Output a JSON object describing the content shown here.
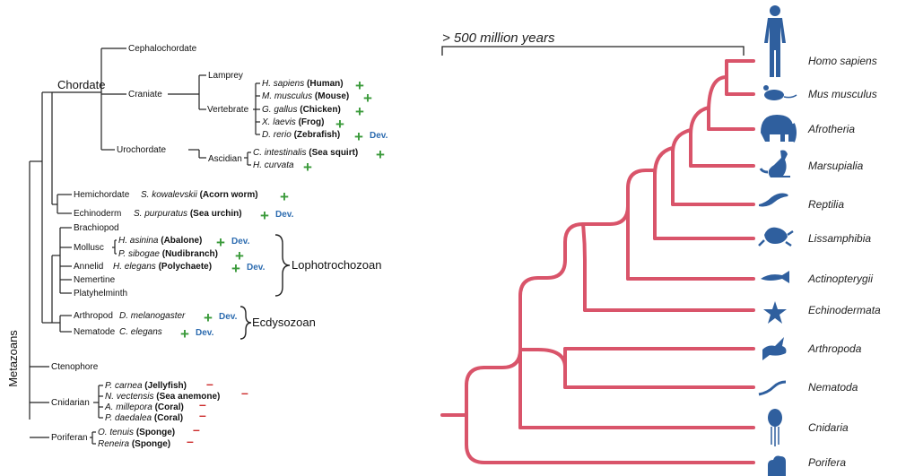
{
  "left": {
    "root_label": "Metazoans",
    "nodes": {
      "cephalochordate": "Cephalochordate",
      "chordate": "Chordate",
      "craniate": "Craniate",
      "lamprey": "Lamprey",
      "vertebrate": "Vertebrate",
      "urochordate": "Urochordate",
      "ascidian": "Ascidian",
      "hemichordate": "Hemichordate",
      "echinoderm": "Echinoderm",
      "brachiopod": "Brachiopod",
      "mollusc": "Mollusc",
      "annelid": "Annelid",
      "nemertine": "Nemertine",
      "platyhelminth": "Platyhelminth",
      "arthropod": "Arthropod",
      "nematode": "Nematode",
      "ctenophore": "Ctenophore",
      "cnidarian": "Cnidarian",
      "poriferan": "Poriferan"
    },
    "groups": {
      "lophotrochozoan": "Lophotrochozoan",
      "ecdysozoan": "Ecdysozoan"
    },
    "plus": "+",
    "dev": "Dev.",
    "minus": "–",
    "species": [
      {
        "id": "human",
        "sci": "H. sapiens",
        "common": "(Human)",
        "mark": "plus",
        "dev": false
      },
      {
        "id": "mouse",
        "sci": "M. musculus",
        "common": "(Mouse)",
        "mark": "plus",
        "dev": false
      },
      {
        "id": "chicken",
        "sci": "G. gallus",
        "common": "(Chicken)",
        "mark": "plus",
        "dev": false
      },
      {
        "id": "frog",
        "sci": "X. laevis",
        "common": "(Frog)",
        "mark": "plus",
        "dev": false
      },
      {
        "id": "zebrafish",
        "sci": "D. rerio",
        "common": "(Zebrafish)",
        "mark": "plus",
        "dev": true
      },
      {
        "id": "seasquirt",
        "sci": "C. intestinalis",
        "common": "(Sea squirt)",
        "mark": "plus",
        "dev": false
      },
      {
        "id": "hcurvata",
        "sci": "H. curvata",
        "common": "",
        "mark": "plus",
        "dev": false
      },
      {
        "id": "acornworm",
        "sci": "S. kowalevskii",
        "common": "(Acorn worm)",
        "mark": "plus",
        "dev": false
      },
      {
        "id": "seaurchin",
        "sci": "S. purpuratus",
        "common": "(Sea urchin)",
        "mark": "plus",
        "dev": true
      },
      {
        "id": "abalone",
        "sci": "H. asinina",
        "common": "(Abalone)",
        "mark": "plus",
        "dev": true
      },
      {
        "id": "nudibranch",
        "sci": "P. sibogae",
        "common": "(Nudibranch)",
        "mark": "plus",
        "dev": false
      },
      {
        "id": "polychaete",
        "sci": "H. elegans",
        "common": "(Polychaete)",
        "mark": "plus",
        "dev": true
      },
      {
        "id": "dmelanogaster",
        "sci": "D. melanogaster",
        "common": "",
        "mark": "plus",
        "dev": true
      },
      {
        "id": "celegans",
        "sci": "C. elegans",
        "common": "",
        "mark": "plus",
        "dev": true
      },
      {
        "id": "jellyfish",
        "sci": "P. carnea",
        "common": "(Jellyfish)",
        "mark": "minus",
        "dev": false
      },
      {
        "id": "seaanemone",
        "sci": "N. vectensis",
        "common": "(Sea anemone)",
        "mark": "minus",
        "dev": false
      },
      {
        "id": "coral1",
        "sci": "A. millepora",
        "common": "(Coral)",
        "mark": "minus",
        "dev": false
      },
      {
        "id": "coral2",
        "sci": "P. daedalea",
        "common": "(Coral)",
        "mark": "minus",
        "dev": false
      },
      {
        "id": "sponge1",
        "sci": "O. tenuis",
        "common": "(Sponge)",
        "mark": "minus",
        "dev": false
      },
      {
        "id": "sponge2",
        "sci": "Reneira",
        "common": "(Sponge)",
        "mark": "minus",
        "dev": false
      }
    ]
  },
  "right": {
    "scale_label": "> 500 million years",
    "taxa": [
      "Homo sapiens",
      "Mus musculus",
      "Afrotheria",
      "Marsupialia",
      "Reptilia",
      "Lissamphibia",
      "Actinopterygii",
      "Echinodermata",
      "Arthropoda",
      "Nematoda",
      "Cnidaria",
      "Porifera"
    ],
    "branch_color": "#d9546a",
    "icon_color": "#2f5f9e"
  }
}
